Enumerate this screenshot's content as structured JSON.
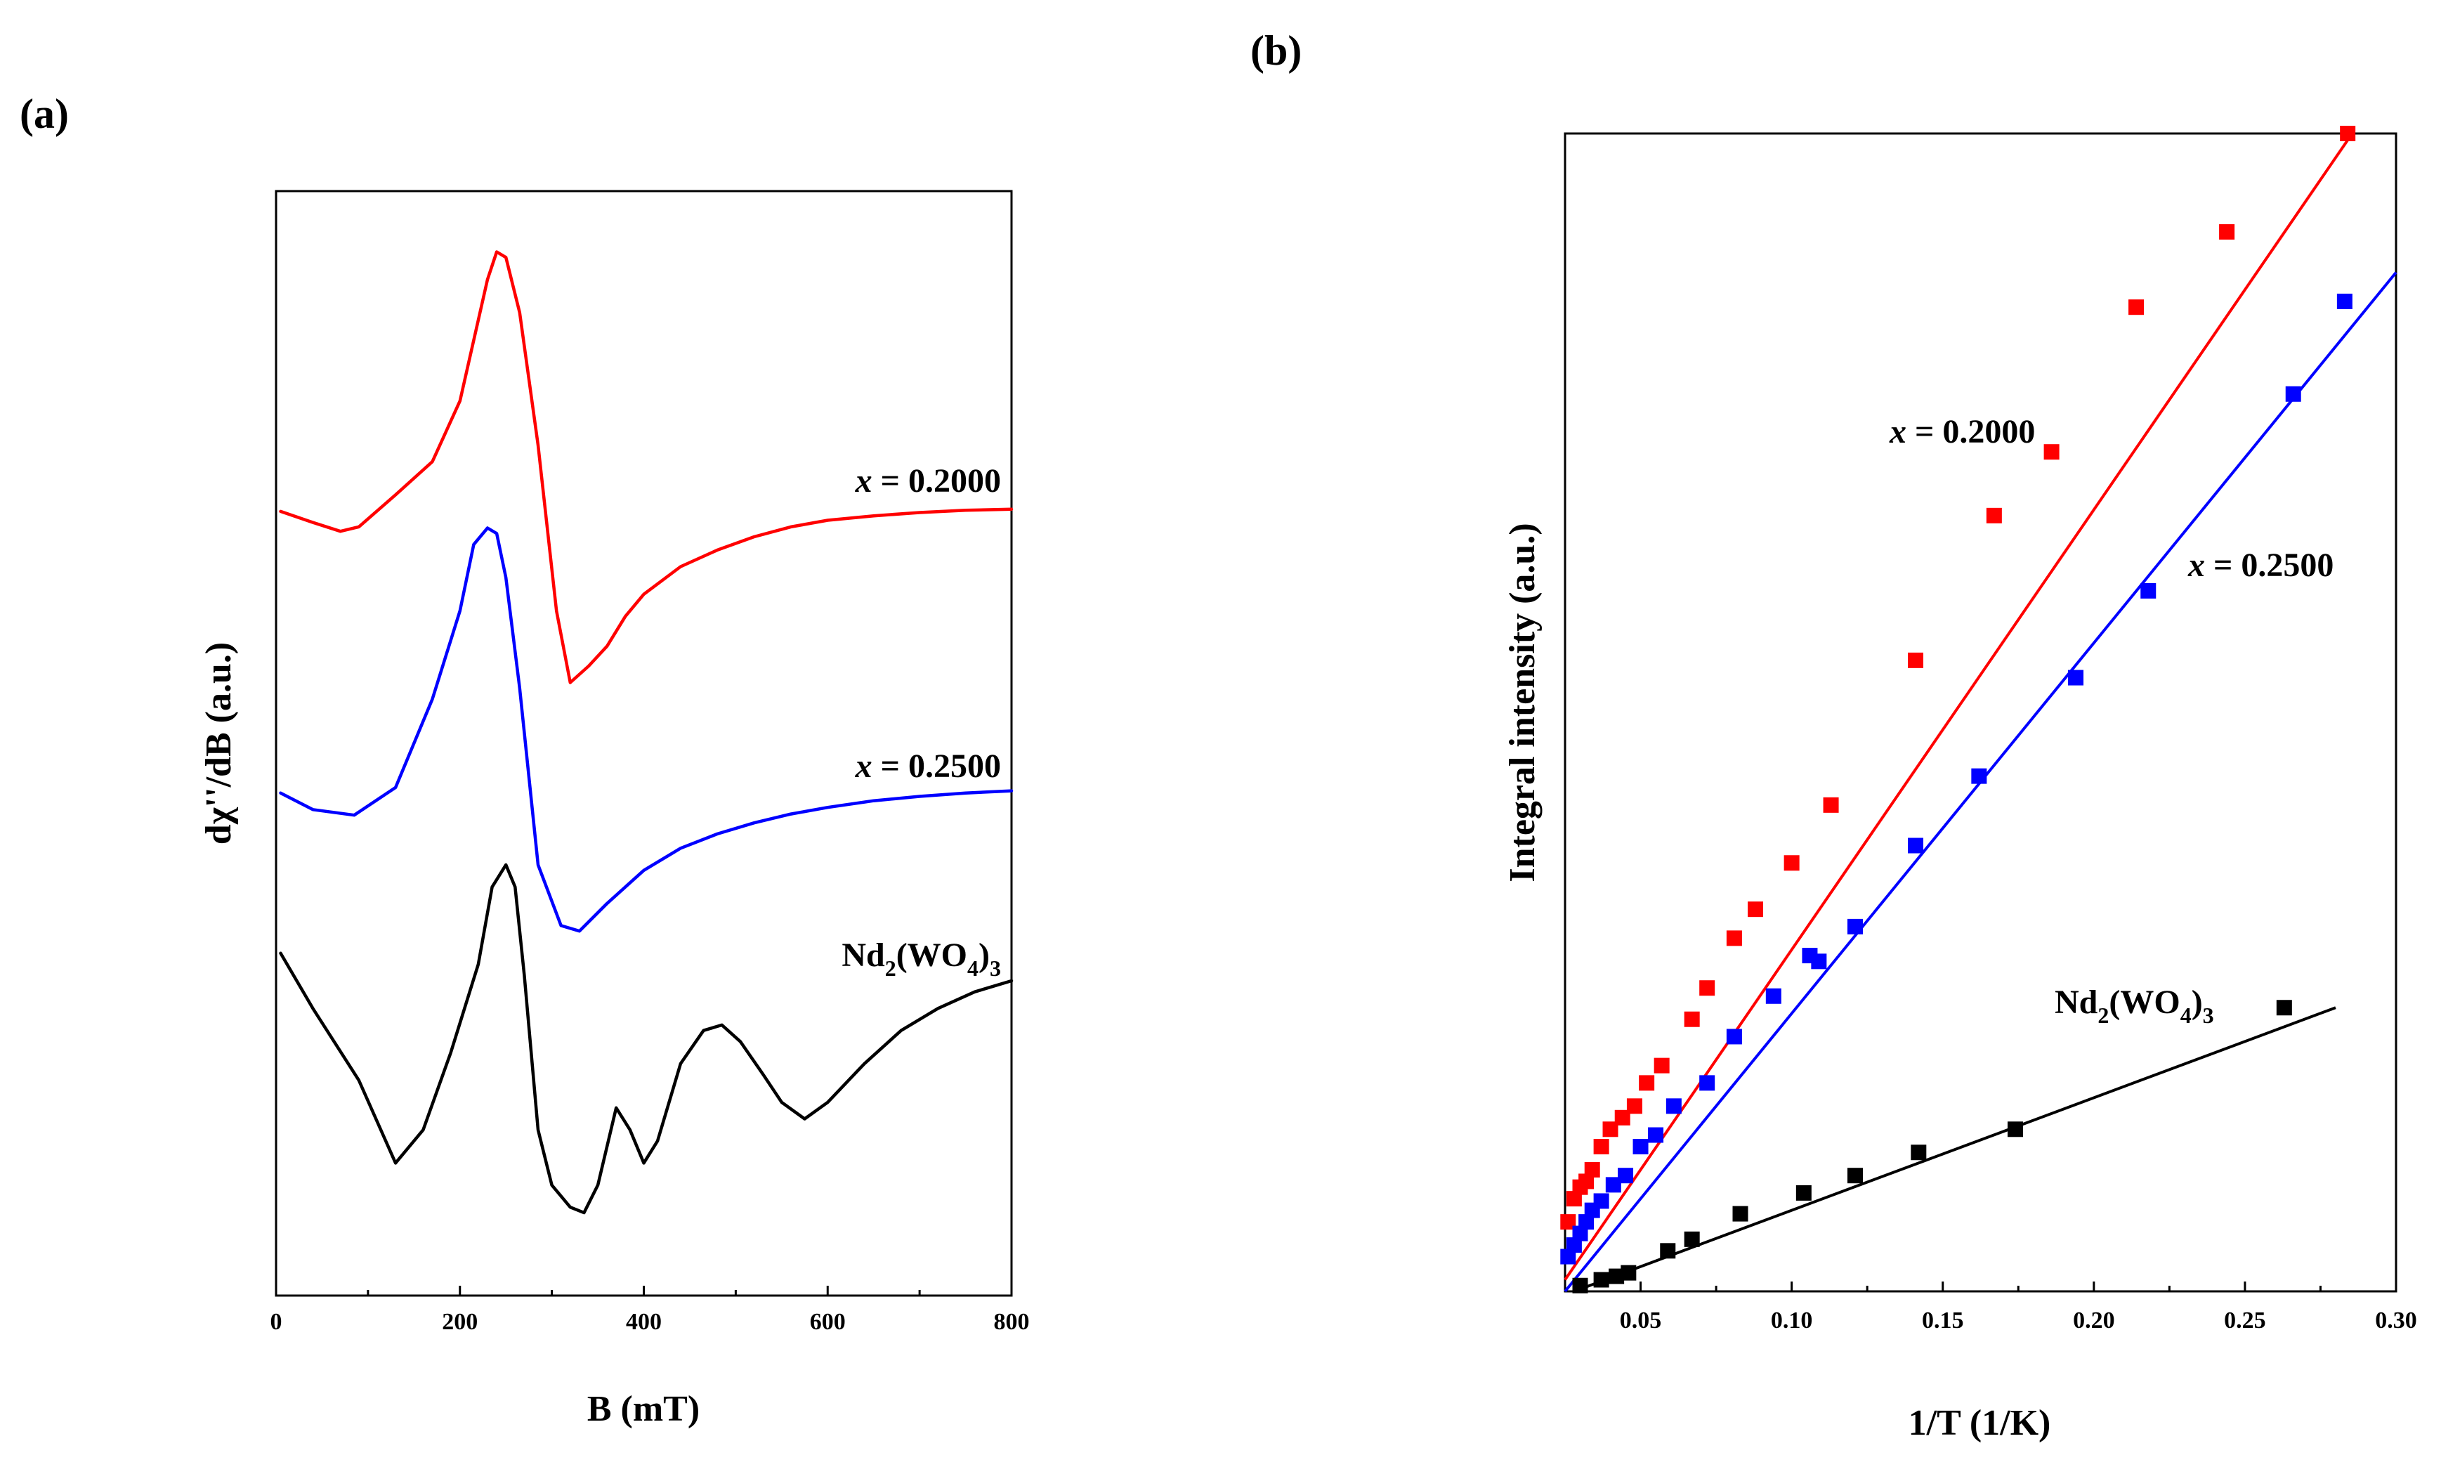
{
  "chart_data": [
    {
      "panel": "(a)",
      "type": "line",
      "title": "",
      "xlabel": "B  (mT)",
      "ylabel": "dχ''/dB  (a.u.)",
      "xlim": [
        0,
        800
      ],
      "ylim": [
        0,
        1
      ],
      "xticks": [
        0,
        200,
        400,
        600,
        800
      ],
      "yticks_shown": false,
      "series": [
        {
          "name": "x = 0.2000",
          "color": "#ff0000",
          "x": [
            5,
            40,
            70,
            90,
            130,
            170,
            200,
            215,
            230,
            240,
            250,
            265,
            285,
            305,
            320,
            340,
            360,
            380,
            400,
            440,
            480,
            520,
            560,
            600,
            650,
            700,
            750,
            800
          ],
          "y": [
            0.71,
            0.7,
            0.692,
            0.696,
            0.725,
            0.755,
            0.81,
            0.865,
            0.92,
            0.945,
            0.94,
            0.89,
            0.77,
            0.62,
            0.555,
            0.57,
            0.588,
            0.615,
            0.635,
            0.66,
            0.675,
            0.687,
            0.696,
            0.702,
            0.706,
            0.709,
            0.711,
            0.712
          ]
        },
        {
          "name": "x = 0.2500",
          "color": "#0000ff",
          "x": [
            5,
            40,
            85,
            130,
            170,
            200,
            215,
            230,
            240,
            250,
            265,
            285,
            310,
            330,
            360,
            400,
            440,
            480,
            520,
            560,
            600,
            650,
            700,
            750,
            800
          ],
          "y": [
            0.455,
            0.44,
            0.435,
            0.46,
            0.54,
            0.62,
            0.68,
            0.695,
            0.69,
            0.65,
            0.55,
            0.39,
            0.335,
            0.33,
            0.355,
            0.385,
            0.405,
            0.418,
            0.428,
            0.436,
            0.442,
            0.448,
            0.452,
            0.455,
            0.457
          ]
        },
        {
          "name": "Nd2(WO4)3",
          "color": "#000000",
          "x": [
            5,
            40,
            90,
            130,
            160,
            190,
            220,
            235,
            250,
            260,
            270,
            285,
            300,
            320,
            335,
            350,
            370,
            385,
            400,
            415,
            440,
            465,
            485,
            505,
            530,
            550,
            575,
            600,
            640,
            680,
            720,
            760,
            800
          ],
          "y": [
            0.31,
            0.26,
            0.195,
            0.12,
            0.15,
            0.22,
            0.3,
            0.37,
            0.39,
            0.37,
            0.29,
            0.15,
            0.1,
            0.08,
            0.075,
            0.1,
            0.17,
            0.15,
            0.12,
            0.14,
            0.21,
            0.24,
            0.245,
            0.23,
            0.2,
            0.175,
            0.16,
            0.175,
            0.21,
            0.24,
            0.26,
            0.275,
            0.285
          ]
        }
      ],
      "annotations": [
        "x = 0.2000",
        "x = 0.2500",
        "Nd2(WO4)3"
      ]
    },
    {
      "panel": "(b)",
      "type": "scatter",
      "title": "",
      "xlabel": "1/T (1/K)",
      "ylabel": "Integral intensity (a.u.)",
      "xlim": [
        0.025,
        0.3
      ],
      "ylim": [
        0,
        1
      ],
      "xticks": [
        0.05,
        0.1,
        0.15,
        0.2,
        0.25,
        0.3
      ],
      "xtick_labels": [
        "0.05",
        "0.10",
        "0.15",
        "0.20",
        "0.25",
        "0.30"
      ],
      "yticks_shown": false,
      "series": [
        {
          "name": "x = 0.2000",
          "color": "#ff0000",
          "marker": "square",
          "x": [
            0.026,
            0.028,
            0.03,
            0.032,
            0.034,
            0.037,
            0.04,
            0.044,
            0.048,
            0.052,
            0.057,
            0.067,
            0.072,
            0.081,
            0.088,
            0.1,
            0.113,
            0.141,
            0.167,
            0.186,
            0.214,
            0.244,
            0.284
          ],
          "y": [
            0.06,
            0.08,
            0.09,
            0.095,
            0.105,
            0.125,
            0.14,
            0.15,
            0.16,
            0.18,
            0.195,
            0.235,
            0.262,
            0.305,
            0.33,
            0.37,
            0.42,
            0.545,
            0.67,
            0.725,
            0.85,
            0.915,
            1.0
          ]
        },
        {
          "name": "x = 0.2500",
          "color": "#0000ff",
          "marker": "square",
          "x": [
            0.026,
            0.028,
            0.03,
            0.032,
            0.034,
            0.037,
            0.041,
            0.045,
            0.05,
            0.055,
            0.061,
            0.072,
            0.081,
            0.094,
            0.106,
            0.109,
            0.121,
            0.141,
            0.162,
            0.194,
            0.218,
            0.266,
            0.283
          ],
          "y": [
            0.03,
            0.04,
            0.05,
            0.06,
            0.07,
            0.078,
            0.092,
            0.1,
            0.125,
            0.135,
            0.16,
            0.18,
            0.22,
            0.255,
            0.29,
            0.285,
            0.315,
            0.385,
            0.445,
            0.53,
            0.605,
            0.775,
            0.855
          ]
        },
        {
          "name": "Nd2(WO4)3",
          "color": "#000000",
          "marker": "square",
          "x": [
            0.03,
            0.037,
            0.042,
            0.046,
            0.059,
            0.067,
            0.083,
            0.104,
            0.121,
            0.142,
            0.174,
            0.263
          ],
          "y": [
            0.005,
            0.01,
            0.013,
            0.016,
            0.035,
            0.045,
            0.067,
            0.085,
            0.1,
            0.12,
            0.14,
            0.245
          ]
        }
      ],
      "fit_lines": [
        {
          "name": "x = 0.2000 fit",
          "color": "#ff0000",
          "x": [
            0.025,
            0.2855
          ],
          "y": [
            0.01,
            1.0
          ]
        },
        {
          "name": "x = 0.2500 fit",
          "color": "#0000ff",
          "x": [
            0.025,
            0.3
          ],
          "y": [
            0.0,
            0.88
          ]
        },
        {
          "name": "Nd2(WO4)3 fit",
          "color": "#000000",
          "x": [
            0.028,
            0.28
          ],
          "y": [
            0.0,
            0.245
          ]
        }
      ],
      "annotations": [
        "x = 0.2000",
        "x = 0.2500",
        "Nd2(WO4)3"
      ]
    }
  ]
}
